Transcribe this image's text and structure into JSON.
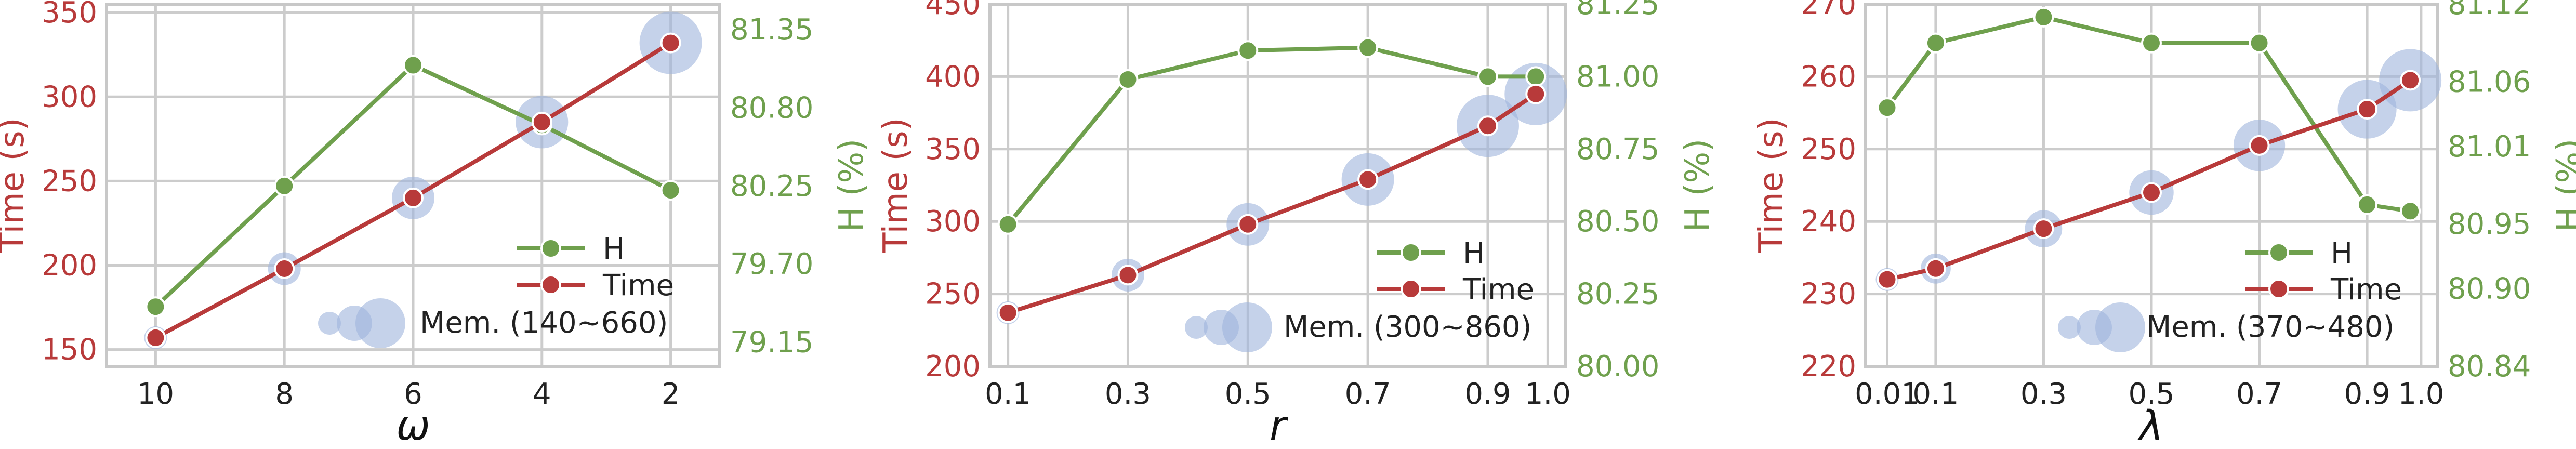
{
  "colors": {
    "time": "#b83a3a",
    "h": "#6fa04d",
    "bubble": "#9fb4dc",
    "grid": "#cccccc",
    "axis": "#c8c8c8"
  },
  "chart_data": [
    {
      "type": "line",
      "x_kind": "category",
      "categories": [
        "10",
        "8",
        "6",
        "4",
        "2"
      ],
      "xlabel": "ω",
      "ylabel_left": "Time (s)",
      "ylabel_right": "H (%)",
      "left_ticks": [
        "150",
        "200",
        "250",
        "300",
        "350"
      ],
      "right_ticks": [
        "79.15",
        "79.70",
        "80.25",
        "80.80",
        "81.35"
      ],
      "ylim_left": [
        140,
        355
      ],
      "ylim_right": [
        78.98,
        81.53
      ],
      "grid": true,
      "legend_position": "bottom-right",
      "series": [
        {
          "name": "H",
          "axis": "right",
          "values": [
            79.4,
            80.25,
            81.1,
            80.68,
            80.22
          ]
        },
        {
          "name": "Time",
          "axis": "left",
          "values": [
            157,
            198,
            240,
            285,
            332
          ]
        }
      ],
      "memory": {
        "label": "Mem. (140~660)",
        "sizes": [
          140,
          270,
          400,
          530,
          660
        ]
      }
    },
    {
      "type": "line",
      "x_kind": "numeric",
      "x": [
        0.1,
        0.3,
        0.5,
        0.7,
        0.9,
        0.98
      ],
      "x_ticks": [
        "0.1",
        "0.3",
        "0.5",
        "0.7",
        "0.9",
        "1.0"
      ],
      "xlim": [
        0.07,
        1.03
      ],
      "xlabel": "r",
      "ylabel_left": "Time (s)",
      "ylabel_right": "H (%)",
      "left_ticks": [
        "200",
        "250",
        "300",
        "350",
        "400",
        "450"
      ],
      "right_ticks": [
        "80.00",
        "80.25",
        "80.50",
        "80.75",
        "81.00",
        "81.25"
      ],
      "ylim_left": [
        200,
        450
      ],
      "ylim_right": [
        80.0,
        81.25
      ],
      "grid": true,
      "legend_position": "bottom-right",
      "series": [
        {
          "name": "H",
          "axis": "right",
          "values": [
            80.49,
            80.99,
            81.09,
            81.1,
            81.0,
            81.0
          ]
        },
        {
          "name": "Time",
          "axis": "left",
          "values": [
            237,
            263,
            298,
            329,
            366,
            388
          ]
        }
      ],
      "memory": {
        "label": "Mem. (300~860)",
        "sizes": [
          300,
          440,
          580,
          720,
          860,
          860
        ]
      }
    },
    {
      "type": "line",
      "x_kind": "numeric",
      "x": [
        0.01,
        0.1,
        0.3,
        0.5,
        0.7,
        0.9,
        0.98
      ],
      "x_ticks": [
        "0.01",
        "0.1",
        "0.3",
        "0.5",
        "0.7",
        "0.9",
        "1.0"
      ],
      "xlim": [
        -0.03,
        1.03
      ],
      "xlabel": "λ",
      "ylabel_left": "Time (s)",
      "ylabel_right": "H (%)",
      "left_ticks": [
        "220",
        "230",
        "240",
        "250",
        "260",
        "270"
      ],
      "right_ticks": [
        "80.84",
        "80.90",
        "80.95",
        "81.01",
        "81.06",
        "81.12"
      ],
      "ylim_left": [
        220,
        270
      ],
      "ylim_right": [
        80.84,
        81.12
      ],
      "grid": true,
      "legend_position": "bottom-right",
      "series": [
        {
          "name": "H",
          "axis": "right",
          "values": [
            81.04,
            81.09,
            81.11,
            81.09,
            81.09,
            80.965,
            80.96
          ]
        },
        {
          "name": "Time",
          "axis": "left",
          "values": [
            232,
            233.5,
            239,
            244,
            250.5,
            255.5,
            259.5
          ]
        }
      ],
      "memory": {
        "label": "Mem. (370~480)",
        "sizes": [
          370,
          390,
          410,
          430,
          450,
          470,
          480
        ]
      }
    }
  ]
}
